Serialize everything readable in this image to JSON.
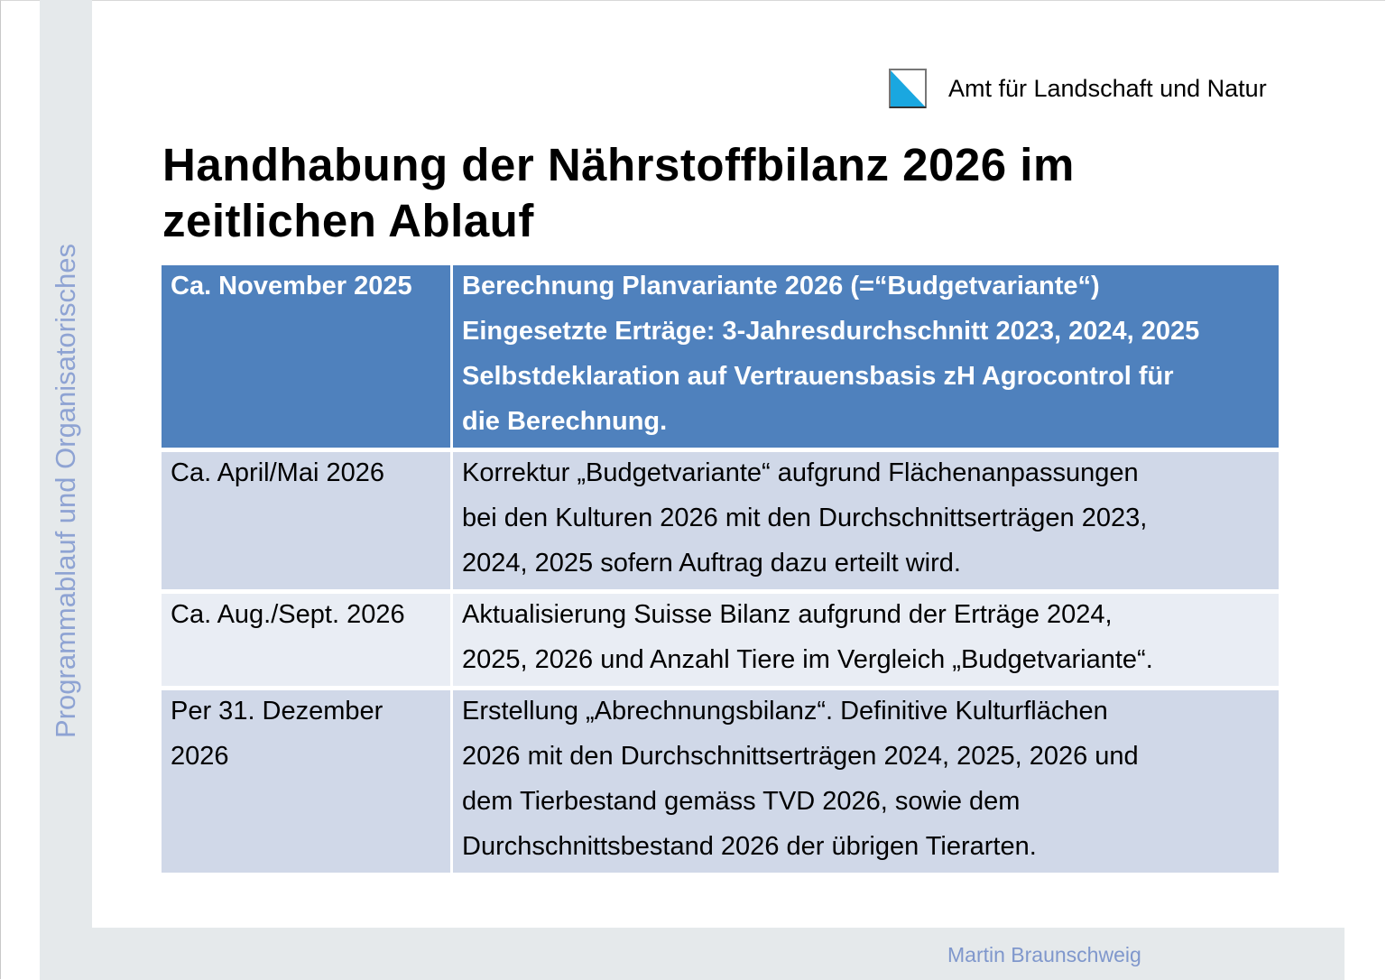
{
  "side_label": "Programmablauf und Organisatorisches",
  "organization": "Amt für Landschaft und Natur",
  "logo_colors": {
    "blue": "#1aa7e0",
    "white": "#ffffff"
  },
  "title_lines": [
    "Handhabung der Nährstoffbilanz 2026 im",
    "zeitlichen Ablauf"
  ],
  "author": "Martin Braunschweig",
  "colors": {
    "header": "#4f81bd",
    "row_dark": "#d0d8e8",
    "row_light": "#e9edf4"
  },
  "rows": [
    {
      "date": [
        "Ca. November 2025"
      ],
      "text": [
        "Berechnung Planvariante 2026 (=“Budgetvariante“)",
        "Eingesetzte Erträge: 3-Jahresdurchschnitt 2023, 2024, 2025",
        "Selbstdeklaration auf Vertrauensbasis zH Agrocontrol für",
        "die Berechnung."
      ]
    },
    {
      "date": [
        "Ca. April/Mai 2026"
      ],
      "text": [
        "Korrektur „Budgetvariante“ aufgrund Flächenanpassungen",
        "bei den Kulturen 2026 mit den Durchschnittserträgen 2023,",
        "2024, 2025 sofern Auftrag dazu erteilt wird."
      ]
    },
    {
      "date": [
        "Ca. Aug./Sept. 2026"
      ],
      "text": [
        "Aktualisierung Suisse Bilanz aufgrund der Erträge 2024,",
        "2025, 2026 und Anzahl Tiere im Vergleich „Budgetvariante“."
      ]
    },
    {
      "date": [
        "Per 31. Dezember",
        "2026"
      ],
      "text": [
        "Erstellung „Abrechnungsbilanz“. Definitive Kulturflächen",
        "2026 mit den Durchschnittserträgen 2024, 2025, 2026 und",
        "dem Tierbestand gemäss TVD 2026, sowie dem",
        "Durchschnittsbestand 2026 der übrigen Tierarten."
      ]
    }
  ]
}
